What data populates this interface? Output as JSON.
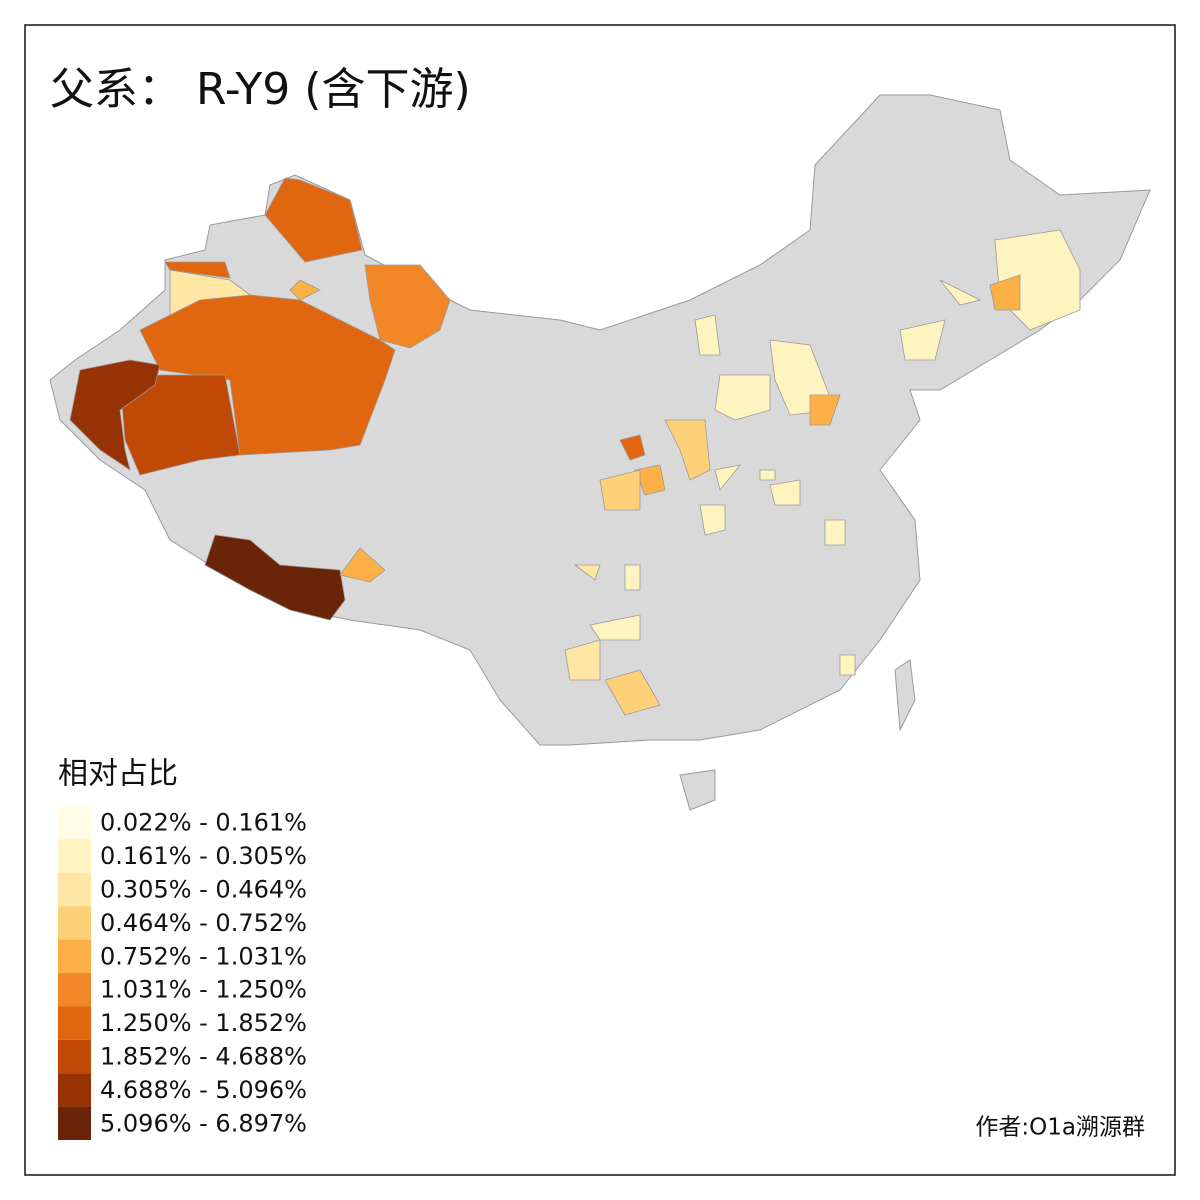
{
  "title": "父系： R-Y9 (含下游)",
  "legend": {
    "title": "相对占比",
    "items": [
      {
        "label": "0.022% - 0.161%",
        "color": "#fffbe4"
      },
      {
        "label": "0.161% - 0.305%",
        "color": "#fff4c0"
      },
      {
        "label": "0.305% - 0.464%",
        "color": "#fee6a4"
      },
      {
        "label": "0.464% - 0.752%",
        "color": "#fed078"
      },
      {
        "label": "0.752% - 1.031%",
        "color": "#fdb045"
      },
      {
        "label": "1.031% - 1.250%",
        "color": "#f28728"
      },
      {
        "label": "1.250% - 1.852%",
        "color": "#e0660f"
      },
      {
        "label": "1.852% - 4.688%",
        "color": "#c04a05"
      },
      {
        "label": "4.688% - 5.096%",
        "color": "#963204"
      },
      {
        "label": "5.096% - 6.897%",
        "color": "#6a2407"
      }
    ]
  },
  "credit": "作者:O1a溯源群"
}
